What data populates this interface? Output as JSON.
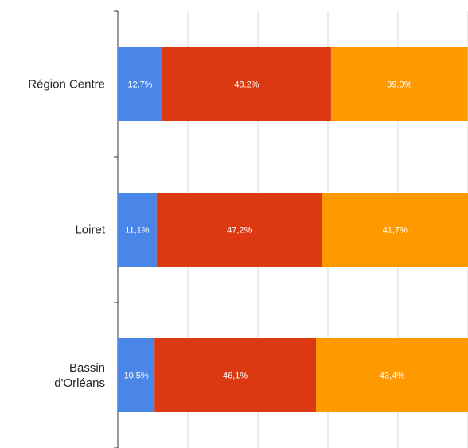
{
  "chart_data": {
    "type": "bar",
    "orientation": "horizontal",
    "stacked": true,
    "categories": [
      [
        "Région Centre"
      ],
      [
        "Loiret"
      ],
      [
        "Bassin",
        "d'Orléans"
      ]
    ],
    "series": [
      {
        "color": "#4a86e8",
        "values": [
          12.7,
          11.1,
          10.5
        ],
        "labels": [
          "12,7%",
          "11,1%",
          "10,5%"
        ]
      },
      {
        "color": "#dc3912",
        "values": [
          48.2,
          47.2,
          46.1
        ],
        "labels": [
          "48,2%",
          "47,2%",
          "46,1%"
        ]
      },
      {
        "color": "#ff9900",
        "values": [
          39.0,
          41.7,
          43.4
        ],
        "labels": [
          "39,0%",
          "41,7%",
          "43,4%"
        ]
      }
    ],
    "xlim": [
      0,
      100
    ],
    "grid": true
  }
}
